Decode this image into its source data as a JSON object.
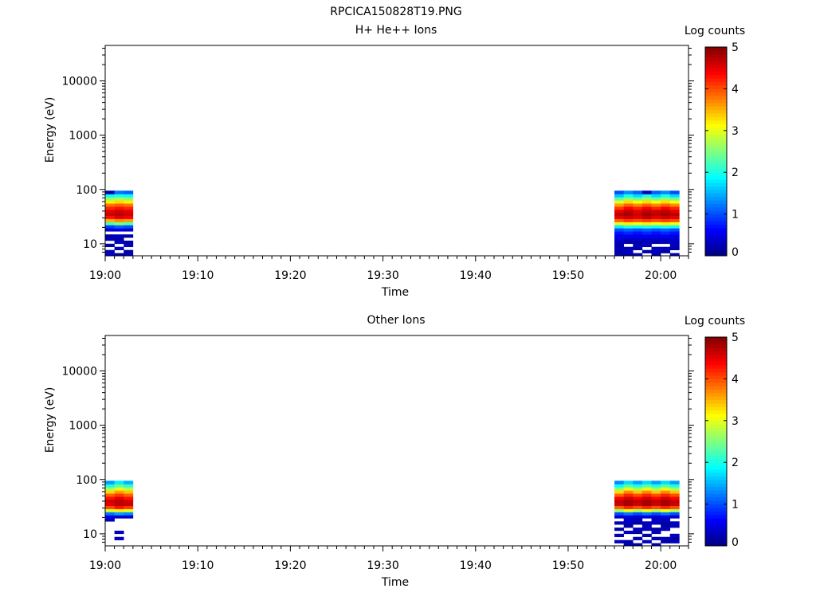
{
  "figure_title": "RPCICA150828T19.PNG",
  "colorbar": {
    "label": "Log counts",
    "ticks": [
      "0",
      "1",
      "2",
      "3",
      "4",
      "5"
    ],
    "min": 0,
    "max": 5,
    "colormap": "jet"
  },
  "axes": {
    "ylabel": "Energy (eV)",
    "xlabel": "Time",
    "yticks": [
      {
        "value": 10,
        "label": "10"
      },
      {
        "value": 100,
        "label": "100"
      },
      {
        "value": 1000,
        "label": "1000"
      },
      {
        "value": 10000,
        "label": "10000"
      }
    ],
    "xticks": [
      "19:00",
      "19:10",
      "19:20",
      "19:30",
      "19:40",
      "19:50",
      "20:00"
    ],
    "yscale": "log"
  },
  "chart_data": [
    {
      "type": "heatmap",
      "title": "H+ He++ Ions",
      "xlabel": "Time",
      "ylabel": "Energy (eV)",
      "xlim": [
        "19:00",
        "20:03"
      ],
      "ylim": [
        6,
        45000
      ],
      "yscale": "log",
      "colorbar_label": "Log counts",
      "colorbar_range": [
        0,
        5
      ],
      "energy_bins": [
        6.3,
        7.2,
        8.2,
        9.4,
        10.7,
        12.2,
        13.9,
        15.9,
        18.1,
        20.7,
        23.6,
        26.9,
        30.7,
        35,
        39.9,
        45.5,
        51.9,
        59.2,
        67.6,
        77.1,
        88
      ],
      "segments": [
        {
          "times": [
            "19:01",
            "19:02",
            "19:03"
          ],
          "values": [
            [
              0.4,
              0.2,
              0.3
            ],
            [
              0.3,
              null,
              0.2
            ],
            [
              null,
              0.3,
              null
            ],
            [
              0.2,
              null,
              0.3
            ],
            [
              null,
              0.3,
              0.2
            ],
            [
              0.3,
              0.2,
              null
            ],
            [
              0.2,
              0.3,
              0.2
            ],
            [
              null,
              null,
              null
            ],
            [
              0.4,
              0.5,
              0.4
            ],
            [
              0.9,
              1.1,
              1.0
            ],
            [
              2.2,
              2.5,
              2.3
            ],
            [
              3.5,
              3.7,
              3.6
            ],
            [
              4.3,
              4.5,
              4.4
            ],
            [
              4.6,
              4.7,
              4.6
            ],
            [
              4.5,
              4.6,
              4.5
            ],
            [
              4.2,
              4.3,
              4.2
            ],
            [
              3.8,
              3.9,
              3.8
            ],
            [
              3.2,
              3.3,
              3.2
            ],
            [
              2.6,
              2.7,
              2.6
            ],
            [
              1.9,
              2.0,
              1.9
            ],
            [
              0.2,
              1.2,
              1.1
            ]
          ]
        },
        {
          "times": [
            "19:56",
            "19:57",
            "19:58",
            "19:59",
            "20:00",
            "20:01",
            "20:02"
          ],
          "values": [
            [
              0.3,
              0.2,
              0.3,
              null,
              0.2,
              null,
              0.3
            ],
            [
              0.2,
              0.3,
              null,
              0.2,
              0.3,
              0.2,
              null
            ],
            [
              0.3,
              0.3,
              0.2,
              null,
              0.3,
              0.3,
              0.2
            ],
            [
              0.2,
              null,
              0.3,
              0.3,
              null,
              null,
              0.3
            ],
            [
              0.3,
              0.2,
              0.2,
              0.3,
              0.2,
              0.3,
              0.3
            ],
            [
              0.4,
              0.3,
              0.4,
              0.3,
              0.4,
              0.3,
              0.4
            ],
            [
              0.5,
              0.6,
              0.5,
              0.6,
              0.5,
              0.6,
              0.5
            ],
            [
              0.7,
              0.8,
              0.7,
              0.8,
              0.7,
              0.8,
              0.7
            ],
            [
              1.0,
              1.1,
              1.0,
              1.1,
              1.0,
              1.1,
              1.0
            ],
            [
              1.8,
              2.0,
              1.9,
              2.0,
              1.9,
              2.0,
              1.9
            ],
            [
              3.0,
              3.2,
              3.1,
              3.2,
              3.1,
              3.2,
              3.1
            ],
            [
              3.9,
              4.1,
              4.0,
              4.1,
              4.0,
              4.1,
              4.0
            ],
            [
              4.5,
              4.6,
              4.5,
              4.7,
              4.5,
              4.6,
              4.5
            ],
            [
              4.7,
              4.8,
              4.6,
              4.8,
              4.7,
              4.8,
              4.7
            ],
            [
              4.5,
              4.7,
              4.5,
              4.7,
              4.6,
              4.7,
              4.5
            ],
            [
              4.1,
              4.4,
              4.2,
              4.4,
              4.2,
              4.4,
              4.2
            ],
            [
              3.6,
              3.9,
              3.7,
              3.9,
              3.7,
              3.9,
              3.7
            ],
            [
              3.0,
              3.3,
              3.1,
              3.3,
              3.1,
              3.3,
              3.1
            ],
            [
              2.3,
              2.6,
              2.4,
              2.6,
              2.4,
              2.6,
              2.4
            ],
            [
              1.6,
              2.0,
              1.7,
              2.0,
              1.7,
              2.0,
              1.7
            ],
            [
              1.0,
              1.3,
              1.1,
              0.3,
              1.1,
              1.3,
              1.0
            ]
          ]
        }
      ]
    },
    {
      "type": "heatmap",
      "title": "Other Ions",
      "xlabel": "Time",
      "ylabel": "Energy (eV)",
      "xlim": [
        "19:00",
        "20:03"
      ],
      "ylim": [
        6,
        45000
      ],
      "yscale": "log",
      "colorbar_label": "Log counts",
      "colorbar_range": [
        0,
        5
      ],
      "energy_bins": [
        6.3,
        7.2,
        8.2,
        9.4,
        10.7,
        12.2,
        13.9,
        15.9,
        18.1,
        20.7,
        23.6,
        26.9,
        30.7,
        35,
        39.9,
        45.5,
        51.9,
        59.2,
        67.6,
        77.1,
        88
      ],
      "segments": [
        {
          "times": [
            "19:01",
            "19:02",
            "19:03"
          ],
          "values": [
            [
              null,
              null,
              null
            ],
            [
              null,
              null,
              null
            ],
            [
              null,
              0.3,
              null
            ],
            [
              null,
              null,
              null
            ],
            [
              null,
              0.3,
              null
            ],
            [
              null,
              null,
              null
            ],
            [
              null,
              null,
              null
            ],
            [
              null,
              null,
              null
            ],
            [
              0.3,
              null,
              null
            ],
            [
              0.5,
              0.4,
              0.4
            ],
            [
              1.2,
              1.4,
              1.3
            ],
            [
              2.9,
              3.2,
              3.0
            ],
            [
              4.0,
              4.3,
              4.1
            ],
            [
              4.5,
              4.7,
              4.6
            ],
            [
              4.6,
              4.7,
              4.6
            ],
            [
              4.3,
              4.5,
              4.3
            ],
            [
              3.9,
              4.1,
              3.9
            ],
            [
              3.3,
              3.6,
              3.4
            ],
            [
              2.7,
              3.0,
              2.8
            ],
            [
              2.0,
              2.4,
              2.1
            ],
            [
              1.4,
              1.8,
              1.5
            ]
          ]
        },
        {
          "times": [
            "19:56",
            "19:57",
            "19:58",
            "19:59",
            "20:00",
            "20:01",
            "20:02"
          ],
          "values": [
            [
              null,
              0.3,
              0.2,
              null,
              0.3,
              null,
              null
            ],
            [
              0.3,
              0.2,
              null,
              0.3,
              null,
              0.2,
              0.3
            ],
            [
              null,
              null,
              0.3,
              null,
              0.2,
              0.3,
              0.2
            ],
            [
              0.3,
              null,
              null,
              0.2,
              null,
              null,
              0.3
            ],
            [
              null,
              0.3,
              0.2,
              null,
              0.3,
              null,
              null
            ],
            [
              0.2,
              null,
              0.3,
              0.3,
              0.2,
              0.3,
              null
            ],
            [
              null,
              0.2,
              null,
              0.3,
              null,
              0.2,
              0.3
            ],
            [
              0.3,
              0.3,
              0.2,
              0.3,
              0.3,
              0.2,
              0.3
            ],
            [
              null,
              0.3,
              0.3,
              null,
              0.3,
              0.3,
              null
            ],
            [
              0.4,
              0.5,
              0.4,
              0.5,
              0.4,
              0.5,
              0.4
            ],
            [
              1.0,
              1.2,
              1.0,
              1.2,
              1.0,
              1.2,
              1.0
            ],
            [
              2.6,
              3.0,
              2.7,
              3.0,
              2.7,
              3.0,
              2.7
            ],
            [
              3.9,
              4.2,
              4.0,
              4.2,
              4.0,
              4.2,
              4.0
            ],
            [
              4.6,
              4.8,
              4.6,
              4.8,
              4.6,
              4.8,
              4.6
            ],
            [
              4.7,
              4.8,
              4.7,
              4.8,
              4.7,
              4.8,
              4.7
            ],
            [
              4.4,
              4.6,
              4.4,
              4.6,
              4.4,
              4.6,
              4.4
            ],
            [
              3.9,
              4.2,
              4.0,
              4.2,
              4.0,
              4.2,
              4.0
            ],
            [
              3.3,
              3.7,
              3.4,
              3.7,
              3.4,
              3.7,
              3.4
            ],
            [
              2.6,
              3.0,
              2.7,
              3.0,
              2.7,
              3.0,
              2.7
            ],
            [
              1.9,
              2.3,
              2.0,
              2.3,
              2.0,
              2.3,
              2.0
            ],
            [
              1.3,
              1.7,
              1.4,
              1.7,
              1.4,
              1.7,
              1.4
            ]
          ]
        }
      ]
    }
  ]
}
